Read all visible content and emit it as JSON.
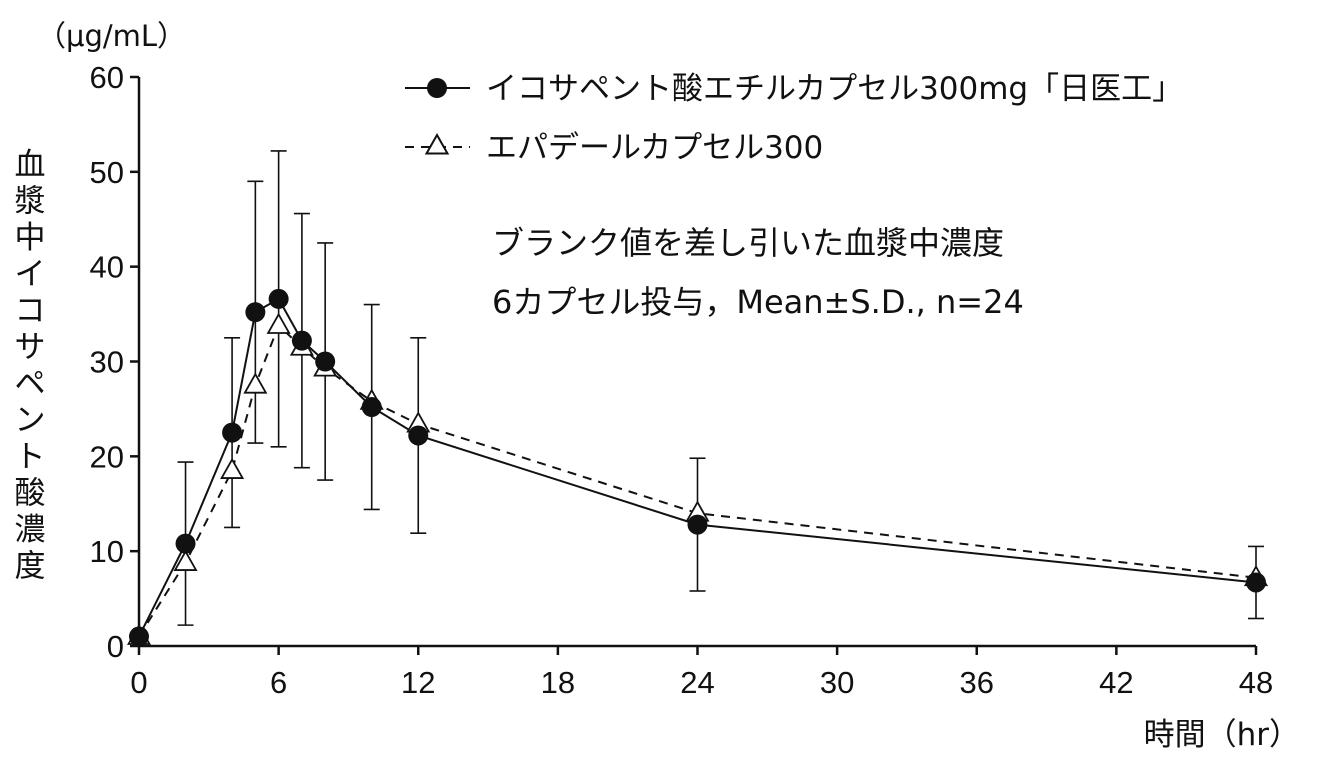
{
  "chart_data": {
    "type": "line",
    "ylabel": "血漿中イコサペント酸濃度",
    "yunit": "（μg/mL）",
    "xlabel": "時間（hr）",
    "xlim": [
      0,
      48
    ],
    "ylim": [
      0,
      60
    ],
    "xticks": [
      0,
      6,
      12,
      18,
      24,
      30,
      36,
      42,
      48
    ],
    "yticks": [
      0,
      10,
      20,
      30,
      40,
      50,
      60
    ],
    "grid": false,
    "legend_position": "top-right",
    "annotations": [
      "ブランク値を差し引いた血漿中濃度",
      "6カプセル投与，Mean±S.D., n=24"
    ],
    "series": [
      {
        "name": "イコサペント酸エチルカプセル300mg「日医工」",
        "marker": "filled-circle",
        "line": "solid",
        "points": [
          {
            "x": 0,
            "y": 1.0,
            "sd": 0
          },
          {
            "x": 2,
            "y": 10.8,
            "sd": 8.6
          },
          {
            "x": 4,
            "y": 22.5,
            "sd": 10.0
          },
          {
            "x": 5,
            "y": 35.2,
            "sd": 13.8
          },
          {
            "x": 6,
            "y": 36.6,
            "sd": 15.6
          },
          {
            "x": 7,
            "y": 32.2,
            "sd": 13.4
          },
          {
            "x": 8,
            "y": 30.0,
            "sd": 12.5
          },
          {
            "x": 10,
            "y": 25.2,
            "sd": 10.8
          },
          {
            "x": 12,
            "y": 22.2,
            "sd": 10.3
          },
          {
            "x": 24,
            "y": 12.8,
            "sd": 7.0
          },
          {
            "x": 48,
            "y": 6.7,
            "sd": 3.8
          }
        ]
      },
      {
        "name": "エパデールカプセル300",
        "marker": "open-triangle",
        "line": "dashed",
        "points": [
          {
            "x": 0,
            "y": 1.0
          },
          {
            "x": 2,
            "y": 8.8
          },
          {
            "x": 4,
            "y": 18.5
          },
          {
            "x": 5,
            "y": 27.5
          },
          {
            "x": 6,
            "y": 33.8
          },
          {
            "x": 7,
            "y": 31.5
          },
          {
            "x": 8,
            "y": 29.3
          },
          {
            "x": 10,
            "y": 25.8
          },
          {
            "x": 12,
            "y": 23.4
          },
          {
            "x": 24,
            "y": 14.0
          },
          {
            "x": 48,
            "y": 7.2
          }
        ]
      }
    ]
  }
}
